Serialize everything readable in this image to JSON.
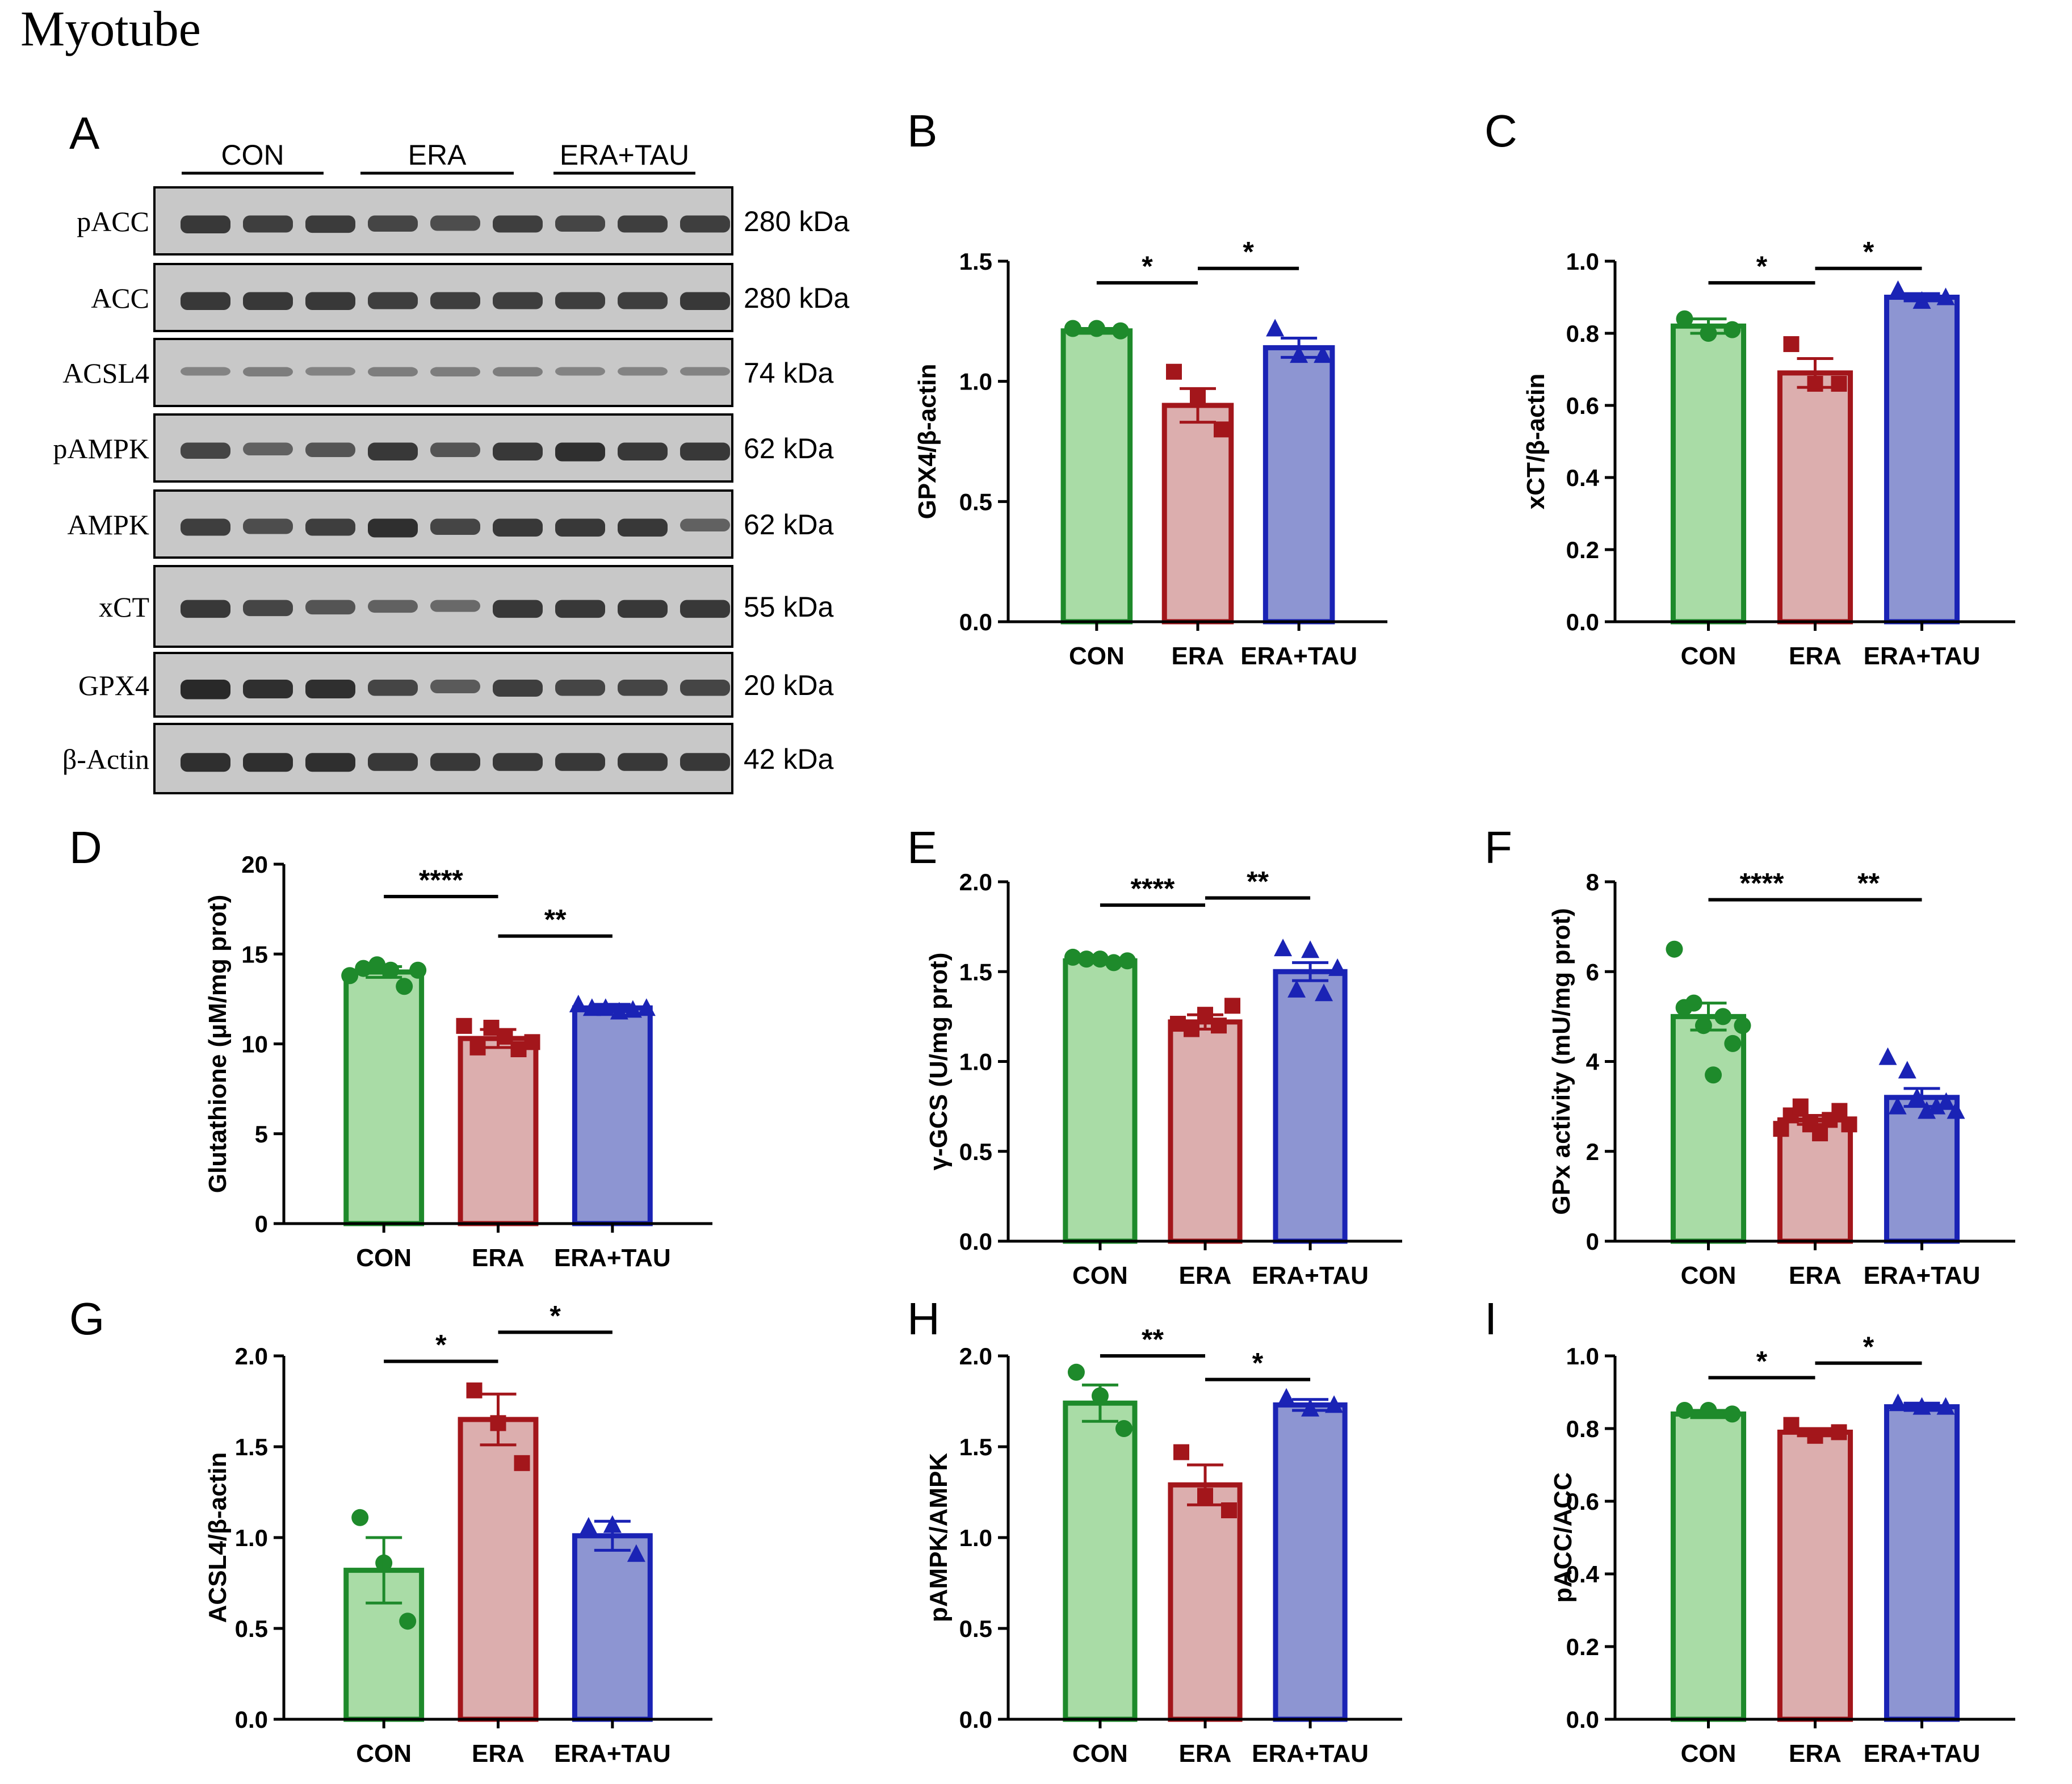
{
  "figure_title": "Myotube",
  "colors": {
    "CON": {
      "fill": "#a9dca6",
      "stroke": "#1e8a2b",
      "marker": "#1e8a2b"
    },
    "ERA": {
      "fill": "#dcaeae",
      "stroke": "#a3161b",
      "marker": "#a3161b"
    },
    "ERA+TAU": {
      "fill": "#8d95d2",
      "stroke": "#1a23b5",
      "marker": "#1a23b5"
    },
    "axis": "#000000",
    "blot_background": "#c8c8c8",
    "band": "#222222"
  },
  "western_blot": {
    "panel_letter": "A",
    "groups": [
      "CON",
      "ERA",
      "ERA+TAU"
    ],
    "rows": [
      {
        "protein": "pACC",
        "size": "280 kDa",
        "band_intensity": [
          0.85,
          0.8,
          0.82,
          0.75,
          0.7,
          0.8,
          0.75,
          0.8,
          0.8
        ]
      },
      {
        "protein": "ACC",
        "size": "280 kDa",
        "band_intensity": [
          0.85,
          0.85,
          0.85,
          0.8,
          0.8,
          0.8,
          0.8,
          0.8,
          0.85
        ]
      },
      {
        "protein": "ACSL4",
        "size": "74 kDa",
        "band_intensity": [
          0.3,
          0.35,
          0.3,
          0.35,
          0.35,
          0.35,
          0.3,
          0.3,
          0.3
        ]
      },
      {
        "protein": "pAMPK",
        "size": "62 kDa",
        "band_intensity": [
          0.75,
          0.55,
          0.65,
          0.85,
          0.65,
          0.85,
          0.9,
          0.85,
          0.85
        ]
      },
      {
        "protein": "AMPK",
        "size": "62 kDa",
        "band_intensity": [
          0.8,
          0.7,
          0.8,
          0.9,
          0.75,
          0.85,
          0.85,
          0.85,
          0.55
        ]
      },
      {
        "protein": "xCT",
        "size": "55 kDa",
        "band_intensity": [
          0.85,
          0.75,
          0.65,
          0.55,
          0.5,
          0.85,
          0.85,
          0.85,
          0.85
        ]
      },
      {
        "protein": "GPX4",
        "size": "20 kDa",
        "band_intensity": [
          0.95,
          0.9,
          0.9,
          0.75,
          0.6,
          0.8,
          0.75,
          0.75,
          0.75
        ]
      },
      {
        "protein": "β-Actin",
        "size": "42 kDa",
        "band_intensity": [
          0.9,
          0.9,
          0.9,
          0.85,
          0.85,
          0.85,
          0.85,
          0.85,
          0.85
        ]
      }
    ]
  },
  "chart_data": [
    {
      "panel": "B",
      "type": "bar",
      "categories": [
        "CON",
        "ERA",
        "ERA+TAU"
      ],
      "values": [
        1.21,
        0.9,
        1.14
      ],
      "sem": [
        0.01,
        0.07,
        0.04
      ],
      "points": [
        [
          1.22,
          1.22,
          1.21
        ],
        [
          1.04,
          0.94,
          0.8
        ],
        [
          1.22,
          1.11,
          1.11
        ]
      ],
      "ylabel": "GPX4/β-actin",
      "ylim": [
        0,
        1.5
      ],
      "yticks": [
        "0.0",
        "0.5",
        "1.0",
        "1.5"
      ],
      "ytick_values": [
        0,
        0.5,
        1.0,
        1.5
      ],
      "significance": [
        {
          "from": 0,
          "to": 1,
          "label": "*",
          "y": 1.41
        },
        {
          "from": 1,
          "to": 2,
          "label": "*",
          "y": 1.47
        }
      ]
    },
    {
      "panel": "C",
      "type": "bar",
      "categories": [
        "CON",
        "ERA",
        "ERA+TAU"
      ],
      "values": [
        0.82,
        0.69,
        0.9
      ],
      "sem": [
        0.02,
        0.04,
        0.01
      ],
      "points": [
        [
          0.84,
          0.8,
          0.81
        ],
        [
          0.77,
          0.66,
          0.66
        ],
        [
          0.92,
          0.89,
          0.9
        ]
      ],
      "ylabel": "xCT/β-actin",
      "ylim": [
        0,
        1.0
      ],
      "yticks": [
        "0.0",
        "0.2",
        "0.4",
        "0.6",
        "0.8",
        "1.0"
      ],
      "ytick_values": [
        0,
        0.2,
        0.4,
        0.6,
        0.8,
        1.0
      ],
      "significance": [
        {
          "from": 0,
          "to": 1,
          "label": "*",
          "y": 0.94
        },
        {
          "from": 1,
          "to": 2,
          "label": "*",
          "y": 0.98
        }
      ]
    },
    {
      "panel": "D",
      "type": "bar",
      "categories": [
        "CON",
        "ERA",
        "ERA+TAU"
      ],
      "values": [
        14.0,
        10.3,
        12.0
      ],
      "sem": [
        0.3,
        0.5,
        0.2
      ],
      "points": [
        [
          13.8,
          14.2,
          14.4,
          14.1,
          13.2,
          14.1
        ],
        [
          11.0,
          9.8,
          10.9,
          10.4,
          9.7,
          10.1
        ],
        [
          12.2,
          12.0,
          12.0,
          11.8,
          11.9,
          12.0
        ]
      ],
      "ylabel": "Glutathione (μM/mg prot)",
      "ylim": [
        0,
        20
      ],
      "yticks": [
        "0",
        "5",
        "10",
        "15",
        "20"
      ],
      "ytick_values": [
        0,
        5,
        10,
        15,
        20
      ],
      "significance": [
        {
          "from": 0,
          "to": 1,
          "label": "****",
          "y": 18.2
        },
        {
          "from": 1,
          "to": 2,
          "label": "**",
          "y": 16.0
        }
      ]
    },
    {
      "panel": "E",
      "type": "bar",
      "categories": [
        "CON",
        "ERA",
        "ERA+TAU"
      ],
      "values": [
        1.56,
        1.22,
        1.5
      ],
      "sem": [
        0.01,
        0.04,
        0.05
      ],
      "points": [
        [
          1.58,
          1.57,
          1.57,
          1.55,
          1.56
        ],
        [
          1.21,
          1.18,
          1.26,
          1.2,
          1.31
        ],
        [
          1.63,
          1.4,
          1.62,
          1.38,
          1.52
        ]
      ],
      "ylabel": "γ-GCS (U/mg prot)",
      "ylim": [
        0,
        2.0
      ],
      "yticks": [
        "0.0",
        "0.5",
        "1.0",
        "1.5",
        "2.0"
      ],
      "ytick_values": [
        0,
        0.5,
        1.0,
        1.5,
        2.0
      ],
      "significance": [
        {
          "from": 0,
          "to": 1,
          "label": "****",
          "y": 1.87
        },
        {
          "from": 1,
          "to": 2,
          "label": "**",
          "y": 1.91
        }
      ]
    },
    {
      "panel": "F",
      "type": "bar",
      "categories": [
        "CON",
        "ERA",
        "ERA+TAU"
      ],
      "values": [
        5.0,
        2.7,
        3.2
      ],
      "sem": [
        0.3,
        0.1,
        0.2
      ],
      "points": [
        [
          6.5,
          5.2,
          5.3,
          4.8,
          3.7,
          5.0,
          4.4,
          4.8
        ],
        [
          2.5,
          2.8,
          3.0,
          2.6,
          2.4,
          2.7,
          2.9,
          2.6
        ],
        [
          4.1,
          3.0,
          3.8,
          3.2,
          2.9,
          3.0,
          3.1,
          2.9
        ]
      ],
      "ylabel": "GPx activity (mU/mg prot)",
      "ylim": [
        0,
        8
      ],
      "yticks": [
        "0",
        "2",
        "4",
        "6",
        "8"
      ],
      "ytick_values": [
        0,
        2,
        4,
        6,
        8
      ],
      "significance": [
        {
          "from": 0,
          "to": 1,
          "label": "****",
          "y": 7.6
        },
        {
          "from": 1,
          "to": 2,
          "label": "**",
          "y": 7.6
        }
      ]
    },
    {
      "panel": "G",
      "type": "bar",
      "categories": [
        "CON",
        "ERA",
        "ERA+TAU"
      ],
      "values": [
        0.82,
        1.65,
        1.01
      ],
      "sem": [
        0.18,
        0.14,
        0.08
      ],
      "points": [
        [
          1.11,
          0.86,
          0.54
        ],
        [
          1.81,
          1.63,
          1.41
        ],
        [
          1.06,
          1.07,
          0.91
        ]
      ],
      "ylabel": "ACSL4/β-actin",
      "ylim": [
        0,
        2.0
      ],
      "yticks": [
        "0.0",
        "0.5",
        "1.0",
        "1.5",
        "2.0"
      ],
      "ytick_values": [
        0,
        0.5,
        1.0,
        1.5,
        2.0
      ],
      "significance": [
        {
          "from": 0,
          "to": 1,
          "label": "*",
          "y": 1.97
        },
        {
          "from": 1,
          "to": 2,
          "label": "*",
          "y": 2.13
        }
      ]
    },
    {
      "panel": "H",
      "type": "bar",
      "categories": [
        "CON",
        "ERA",
        "ERA+TAU"
      ],
      "values": [
        1.74,
        1.29,
        1.73
      ],
      "sem": [
        0.1,
        0.11,
        0.03
      ],
      "points": [
        [
          1.91,
          1.78,
          1.6
        ],
        [
          1.47,
          1.23,
          1.15
        ],
        [
          1.77,
          1.71,
          1.73
        ]
      ],
      "ylabel": "pAMPK/AMPK",
      "ylim": [
        0,
        2.0
      ],
      "yticks": [
        "0.0",
        "0.5",
        "1.0",
        "1.5",
        "2.0"
      ],
      "ytick_values": [
        0,
        0.5,
        1.0,
        1.5,
        2.0
      ],
      "significance": [
        {
          "from": 0,
          "to": 1,
          "label": "**",
          "y": 2.0
        },
        {
          "from": 1,
          "to": 2,
          "label": "*",
          "y": 1.87
        }
      ]
    },
    {
      "panel": "I",
      "type": "bar",
      "categories": [
        "CON",
        "ERA",
        "ERA+TAU"
      ],
      "values": [
        0.84,
        0.79,
        0.86
      ],
      "sem": [
        0.01,
        0.01,
        0.01
      ],
      "points": [
        [
          0.85,
          0.85,
          0.84
        ],
        [
          0.81,
          0.78,
          0.79
        ],
        [
          0.87,
          0.86,
          0.86
        ]
      ],
      "ylabel": "pACC/ACC",
      "ylim": [
        0,
        1.0
      ],
      "yticks": [
        "0.0",
        "0.2",
        "0.4",
        "0.6",
        "0.8",
        "1.0"
      ],
      "ytick_values": [
        0,
        0.2,
        0.4,
        0.6,
        0.8,
        1.0
      ],
      "significance": [
        {
          "from": 0,
          "to": 1,
          "label": "*",
          "y": 0.94
        },
        {
          "from": 1,
          "to": 2,
          "label": "*",
          "y": 0.98
        }
      ]
    }
  ]
}
